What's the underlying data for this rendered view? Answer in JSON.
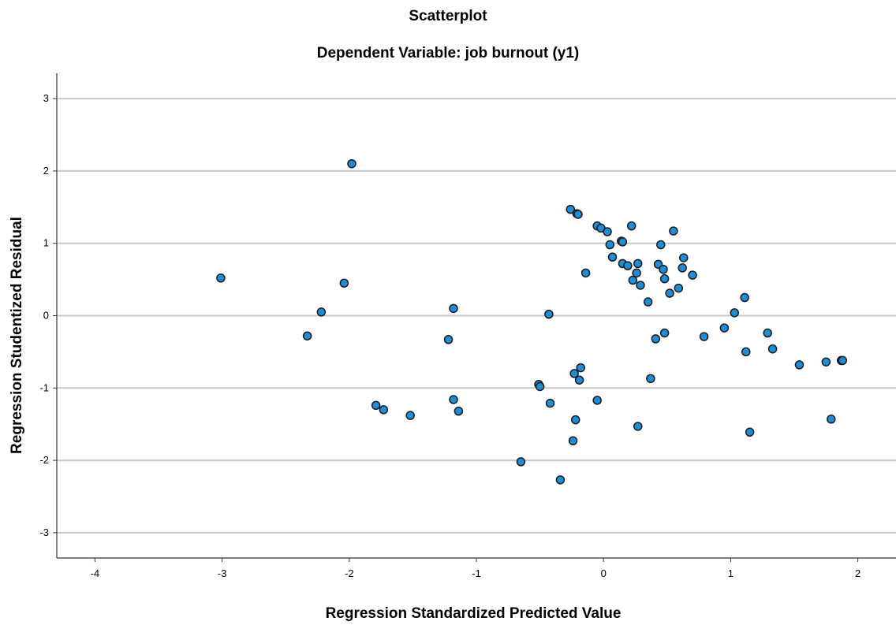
{
  "chart_data": {
    "type": "scatter",
    "title": "Scatterplot",
    "subtitle": "Dependent Variable: job burnout (y1)",
    "xlabel": "Regression Standardized Predicted Value",
    "ylabel": "Regression Studentized Residual",
    "xlim": [
      -4.3,
      2.3
    ],
    "ylim": [
      -3.35,
      3.35
    ],
    "xticks": [
      -4,
      -3,
      -2,
      -1,
      0,
      1,
      2
    ],
    "yticks": [
      -3,
      -2,
      -1,
      0,
      1,
      2,
      3
    ],
    "xtick_labels": [
      "-4",
      "-3",
      "-2",
      "-1",
      "0",
      "1",
      "2"
    ],
    "ytick_labels": [
      "-3",
      "-2",
      "-1",
      "0",
      "1",
      "2",
      "3"
    ],
    "grid": "horizontal",
    "marker_color": "#1f8dd6",
    "marker_edge_color": "#1a1a1a",
    "points": [
      {
        "x": -3.01,
        "y": 0.52
      },
      {
        "x": -2.33,
        "y": -0.28
      },
      {
        "x": -2.22,
        "y": 0.05
      },
      {
        "x": -2.04,
        "y": 0.45
      },
      {
        "x": -1.98,
        "y": 2.1
      },
      {
        "x": -1.79,
        "y": -1.24
      },
      {
        "x": -1.73,
        "y": -1.3
      },
      {
        "x": -1.52,
        "y": -1.38
      },
      {
        "x": -1.22,
        "y": -0.33
      },
      {
        "x": -1.18,
        "y": 0.1
      },
      {
        "x": -1.18,
        "y": -1.16
      },
      {
        "x": -1.14,
        "y": -1.32
      },
      {
        "x": -0.65,
        "y": -2.02
      },
      {
        "x": -0.51,
        "y": -0.95
      },
      {
        "x": -0.5,
        "y": -0.98
      },
      {
        "x": -0.43,
        "y": 0.02
      },
      {
        "x": -0.42,
        "y": -1.21
      },
      {
        "x": -0.34,
        "y": -2.27
      },
      {
        "x": -0.26,
        "y": 1.47
      },
      {
        "x": -0.24,
        "y": -1.73
      },
      {
        "x": -0.23,
        "y": -0.8
      },
      {
        "x": -0.22,
        "y": -1.44
      },
      {
        "x": -0.21,
        "y": 1.41
      },
      {
        "x": -0.2,
        "y": 1.4
      },
      {
        "x": -0.19,
        "y": -0.89
      },
      {
        "x": -0.18,
        "y": -0.72
      },
      {
        "x": -0.14,
        "y": 0.59
      },
      {
        "x": -0.05,
        "y": 1.24
      },
      {
        "x": -0.05,
        "y": -1.17
      },
      {
        "x": -0.02,
        "y": 1.21
      },
      {
        "x": 0.03,
        "y": 1.16
      },
      {
        "x": 0.05,
        "y": 0.98
      },
      {
        "x": 0.07,
        "y": 0.81
      },
      {
        "x": 0.14,
        "y": 1.03
      },
      {
        "x": 0.15,
        "y": 1.02
      },
      {
        "x": 0.15,
        "y": 0.72
      },
      {
        "x": 0.19,
        "y": 0.69
      },
      {
        "x": 0.22,
        "y": 1.24
      },
      {
        "x": 0.23,
        "y": 0.49
      },
      {
        "x": 0.26,
        "y": 0.59
      },
      {
        "x": 0.27,
        "y": 0.72
      },
      {
        "x": 0.27,
        "y": -1.53
      },
      {
        "x": 0.29,
        "y": 0.42
      },
      {
        "x": 0.35,
        "y": 0.19
      },
      {
        "x": 0.37,
        "y": -0.87
      },
      {
        "x": 0.41,
        "y": -0.32
      },
      {
        "x": 0.43,
        "y": 0.71
      },
      {
        "x": 0.45,
        "y": 0.98
      },
      {
        "x": 0.47,
        "y": 0.64
      },
      {
        "x": 0.48,
        "y": 0.51
      },
      {
        "x": 0.48,
        "y": -0.24
      },
      {
        "x": 0.52,
        "y": 0.31
      },
      {
        "x": 0.55,
        "y": 1.17
      },
      {
        "x": 0.59,
        "y": 0.38
      },
      {
        "x": 0.62,
        "y": 0.66
      },
      {
        "x": 0.63,
        "y": 0.8
      },
      {
        "x": 0.7,
        "y": 0.56
      },
      {
        "x": 0.79,
        "y": -0.29
      },
      {
        "x": 0.95,
        "y": -0.17
      },
      {
        "x": 1.03,
        "y": 0.04
      },
      {
        "x": 1.11,
        "y": 0.25
      },
      {
        "x": 1.12,
        "y": -0.5
      },
      {
        "x": 1.15,
        "y": -1.61
      },
      {
        "x": 1.29,
        "y": -0.24
      },
      {
        "x": 1.33,
        "y": -0.46
      },
      {
        "x": 1.54,
        "y": -0.68
      },
      {
        "x": 1.75,
        "y": -0.64
      },
      {
        "x": 1.79,
        "y": -1.43
      },
      {
        "x": 1.87,
        "y": -0.62
      },
      {
        "x": 1.88,
        "y": -0.62
      }
    ]
  }
}
